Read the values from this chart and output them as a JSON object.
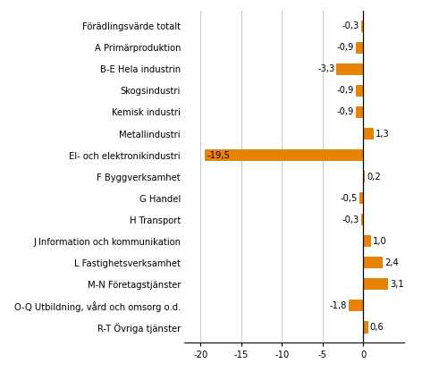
{
  "categories": [
    "Förädlingsvärde totalt",
    "A Primärproduktion",
    "B-E Hela industrin",
    "Skogsindustri",
    "Kemisk industri",
    "Metallindustri",
    "El- och elektronikindustri",
    "F Byggverksamhet",
    "G Handel",
    "H Transport",
    "J Information och kommunikation",
    "L Fastighetsverksamhet",
    "M-N Företagstjänster",
    "O-Q Utbildning, vård och omsorg o.d.",
    "R-T Övriga tjänster"
  ],
  "values": [
    -0.3,
    -0.9,
    -3.3,
    -0.9,
    -0.9,
    1.3,
    -19.5,
    0.2,
    -0.5,
    -0.3,
    1.0,
    2.4,
    3.1,
    -1.8,
    0.6
  ],
  "bar_color": "#E8830A",
  "xlim": [
    -22,
    5
  ],
  "xticks": [
    -20,
    -15,
    -10,
    -5,
    0
  ],
  "grid_color": "#c8c8c8",
  "label_fontsize": 7.2,
  "value_fontsize": 7.2,
  "bar_height": 0.55,
  "background_color": "#ffffff",
  "spine_color": "#000000"
}
